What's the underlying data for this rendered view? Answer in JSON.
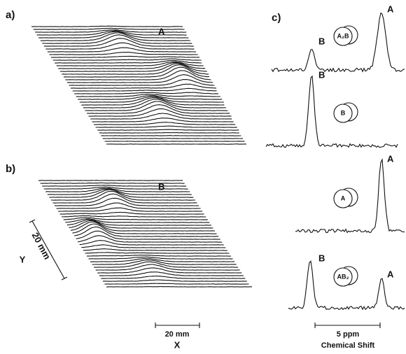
{
  "panels": {
    "a": {
      "label": "a)",
      "tag": "A"
    },
    "b": {
      "label": "b)",
      "tag": "B",
      "scale_y": "20 mm",
      "axis_y": "Y",
      "scale_x": "20 mm",
      "axis_x": "X"
    },
    "c": {
      "label": "c)",
      "spectra": [
        {
          "phantom": "A₂B",
          "peaks": [
            "B",
            "A"
          ]
        },
        {
          "phantom": "B",
          "peaks": [
            "B"
          ]
        },
        {
          "phantom": "A",
          "peaks": [
            "A"
          ]
        },
        {
          "phantom": "AB₂",
          "peaks": [
            "B",
            "A"
          ]
        }
      ],
      "scale": "5 ppm",
      "axis": "Chemical Shift"
    }
  }
}
